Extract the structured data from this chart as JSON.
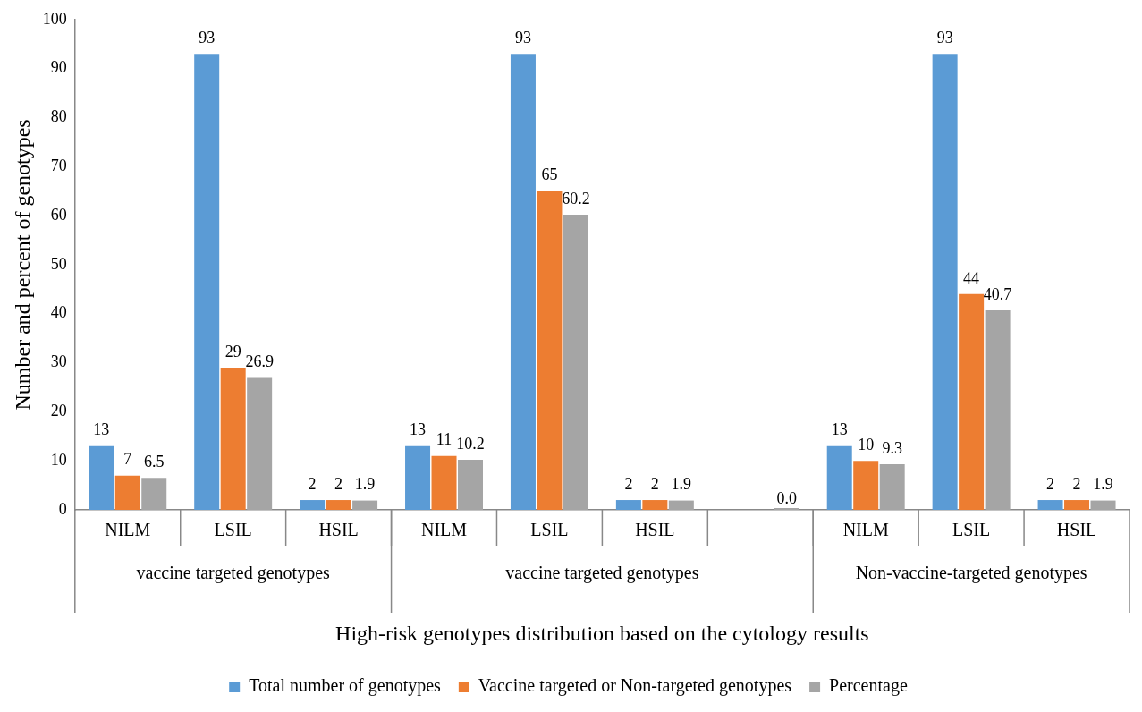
{
  "chart_data": {
    "type": "bar",
    "xlabel": "High-risk genotypes distribution based on the cytology results",
    "ylabel": "Number and percent of genotypes",
    "categories": [
      "NILM",
      "LSIL",
      "HSIL",
      "NILM",
      "LSIL",
      "HSIL",
      null,
      "NILM",
      "LSIL",
      "HSIL"
    ],
    "series": [
      {
        "name": "Total number of genotypes",
        "color": "#5b9bd5",
        "values": [
          13,
          93,
          2,
          13,
          93,
          2,
          null,
          13,
          93,
          2
        ],
        "value_labels": [
          "13",
          "93",
          "2",
          "13",
          "93",
          "2",
          null,
          "13",
          "93",
          "2"
        ]
      },
      {
        "name": "Vaccine targeted or Non-targeted genotypes",
        "color": "#ed7d31",
        "values": [
          7,
          29,
          2,
          11,
          65,
          2,
          null,
          10,
          44,
          2
        ],
        "value_labels": [
          "7",
          "29",
          "2",
          "11",
          "65",
          "2",
          null,
          "10",
          "44",
          "2"
        ]
      },
      {
        "name": "Percentage",
        "color": "#a5a5a5",
        "values": [
          6.5,
          26.9,
          1.9,
          10.2,
          60.2,
          1.9,
          0.0,
          9.3,
          40.7,
          1.9
        ],
        "value_labels": [
          "6.5",
          "26.9",
          "1.9",
          "10.2",
          "60.2",
          "1.9",
          "0.0",
          "9.3",
          "40.7",
          "1.9"
        ]
      }
    ],
    "annotations": [
      "vaccine targeted genotypes",
      "vaccine targeted genotypes",
      "Non-vaccine-targeted genotypes"
    ],
    "ylim": [
      0,
      100
    ],
    "yticks": [
      0,
      10,
      20,
      30,
      40,
      50,
      60,
      70,
      80,
      90,
      100
    ],
    "grid": false,
    "legend": "bottom"
  }
}
